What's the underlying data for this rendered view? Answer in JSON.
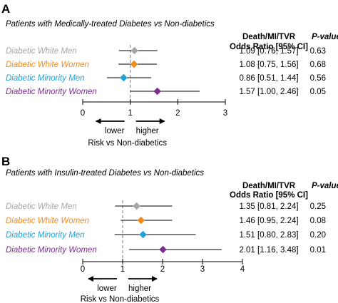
{
  "chart_data": [
    {
      "type": "forest",
      "panel": "A",
      "subtitle": "Patients with Medically-treated Diabetes vs Non-diabetics",
      "column_headers": {
        "or_line1": "Death/MI/TVR",
        "or_line2": "Odds Ratio [95% CI]",
        "p": "P-value"
      },
      "xlim": [
        0,
        3
      ],
      "ticks": [
        0,
        1,
        2,
        3
      ],
      "reference_line": 1,
      "direction_left": "lower",
      "direction_right": "higher",
      "xlabel": "Risk vs Non-diabetics",
      "rows": [
        {
          "label": "Diabetic White Men",
          "color": "#a6a6a6",
          "or": 1.09,
          "lo": 0.76,
          "hi": 1.57,
          "or_text": "1.09 [0.76, 1.57]",
          "p": "0.63"
        },
        {
          "label": "Diabetic White Women",
          "color": "#f28a1e",
          "or": 1.08,
          "lo": 0.75,
          "hi": 1.56,
          "or_text": "1.08 [0.75, 1.56]",
          "p": "0.68"
        },
        {
          "label": "Diabetic Minority Men",
          "color": "#1fa1d9",
          "or": 0.86,
          "lo": 0.51,
          "hi": 1.44,
          "or_text": "0.86 [0.51, 1.44]",
          "p": "0.56"
        },
        {
          "label": "Diabetic Minority Women",
          "color": "#7a2e8e",
          "or": 1.57,
          "lo": 1.0,
          "hi": 2.46,
          "or_text": "1.57 [1.00, 2.46]",
          "p": "0.05"
        }
      ]
    },
    {
      "type": "forest",
      "panel": "B",
      "subtitle": "Patients with Insulin-treated Diabetes vs Non-diabetics",
      "column_headers": {
        "or_line1": "Death/MI/TVR",
        "or_line2": "Odds Ratio [95% CI]",
        "p": "P-value"
      },
      "xlim": [
        0,
        4
      ],
      "ticks": [
        0,
        1,
        2,
        3,
        4
      ],
      "reference_line": 1,
      "direction_left": "lower",
      "direction_right": "higher",
      "xlabel": "Risk vs Non-diabetics",
      "rows": [
        {
          "label": "Diabetic White Men",
          "color": "#a6a6a6",
          "or": 1.35,
          "lo": 0.81,
          "hi": 2.24,
          "or_text": "1.35 [0.81, 2.24]",
          "p": "0.25"
        },
        {
          "label": "Diabetic White Women",
          "color": "#f28a1e",
          "or": 1.46,
          "lo": 0.95,
          "hi": 2.24,
          "or_text": "1.46 [0.95, 2.24]",
          "p": "0.08"
        },
        {
          "label": "Diabetic Minority Men",
          "color": "#1fa1d9",
          "or": 1.51,
          "lo": 0.8,
          "hi": 2.83,
          "or_text": "1.51 [0.80, 2.83]",
          "p": "0.20"
        },
        {
          "label": "Diabetic Minority Women",
          "color": "#7a2e8e",
          "or": 2.01,
          "lo": 1.16,
          "hi": 3.48,
          "or_text": "2.01 [1.16, 3.48]",
          "p": "0.01"
        }
      ]
    }
  ]
}
